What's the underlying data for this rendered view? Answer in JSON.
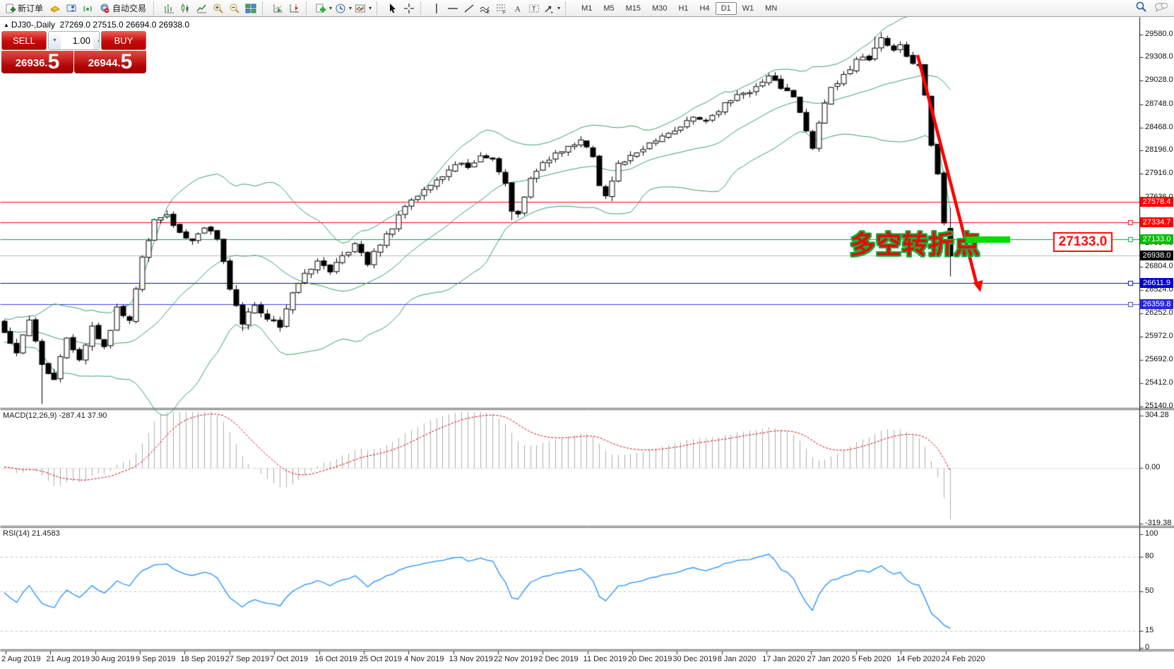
{
  "toolbar": {
    "new_order_label": "新订单",
    "autotrading_label": "自动交易",
    "caret": "▾",
    "timeframes": [
      "M1",
      "M5",
      "M15",
      "M30",
      "H1",
      "H4",
      "D1",
      "W1",
      "MN"
    ],
    "active_timeframe": "D1"
  },
  "chart": {
    "marker": "▲",
    "symbol": "DJ30-,Daily",
    "ohlc_text": "27269.0 27515.0 26694.0 26938.0"
  },
  "trade_panel": {
    "sell_label": "SELL",
    "buy_label": "BUY",
    "volume": "1.00",
    "spin_down": "▼",
    "spin_up": "▲",
    "sell_price_small": "26936.",
    "sell_price_big": "5",
    "buy_price_small": "26944.",
    "buy_price_big": "5"
  },
  "annotations": {
    "turning_point_text": "多空转折点",
    "callout_price": "27133.0"
  },
  "main_axis": {
    "ticks": [
      "29580.0",
      "29308.0",
      "29028.0",
      "28748.0",
      "28468.0",
      "28196.0",
      "27916.0",
      "27636.0",
      "27084.0",
      "26804.0",
      "26524.0",
      "26252.0",
      "25972.0",
      "25692.0",
      "25412.0",
      "25140.0"
    ]
  },
  "macd": {
    "label": "MACD(12,26,9) -287.41 37.90",
    "axis": [
      {
        "v": 304.28,
        "text": "304.28"
      },
      {
        "v": 0,
        "text": "0.00"
      },
      {
        "v": -319.38,
        "text": "-319.38"
      }
    ]
  },
  "rsi": {
    "label": "RSI(14) 21.4583",
    "axis": [
      {
        "v": 100,
        "text": "100"
      },
      {
        "v": 80,
        "text": "80"
      },
      {
        "v": 50,
        "text": "50"
      },
      {
        "v": 15,
        "text": "15"
      },
      {
        "v": 0,
        "text": "0"
      }
    ],
    "levels": [
      80,
      50,
      15
    ]
  },
  "dates": [
    "2 Aug 2019",
    "21 Aug 2019",
    "30 Aug 2019",
    "9 Sep 2019",
    "18 Sep 2019",
    "27 Sep 2019",
    "7 Oct 2019",
    "16 Oct 2019",
    "25 Oct 2019",
    "4 Nov 2019",
    "13 Nov 2019",
    "22 Nov 2019",
    "2 Dec 2019",
    "11 Dec 2019",
    "20 Dec 2019",
    "30 Dec 2019",
    "8 Jan 2020",
    "17 Jan 2020",
    "27 Jan 2020",
    "5 Feb 2020",
    "14 Feb 2020",
    "24 Feb 2020"
  ],
  "chart_data": {
    "type": "candlestick",
    "symbol": "DJ30-",
    "timeframe": "Daily",
    "bars_total": 152,
    "ylim": [
      25119,
      29791
    ],
    "last_ohlc": {
      "open": 27269.0,
      "high": 27515.0,
      "low": 26694.0,
      "close": 26938.0
    },
    "price_path": [
      [
        0,
        26040
      ],
      [
        2,
        25760
      ],
      [
        4,
        26180
      ],
      [
        6,
        25620
      ],
      [
        8,
        25480
      ],
      [
        10,
        25980
      ],
      [
        12,
        25680
      ],
      [
        14,
        26120
      ],
      [
        16,
        25830
      ],
      [
        18,
        26310
      ],
      [
        20,
        26180
      ],
      [
        22,
        26900
      ],
      [
        24,
        27380
      ],
      [
        26,
        27430
      ],
      [
        28,
        27210
      ],
      [
        30,
        27110
      ],
      [
        32,
        27290
      ],
      [
        34,
        27130
      ],
      [
        36,
        26560
      ],
      [
        38,
        26150
      ],
      [
        40,
        26360
      ],
      [
        42,
        26180
      ],
      [
        44,
        26100
      ],
      [
        46,
        26500
      ],
      [
        48,
        26720
      ],
      [
        50,
        26880
      ],
      [
        52,
        26740
      ],
      [
        54,
        26940
      ],
      [
        56,
        27080
      ],
      [
        58,
        26860
      ],
      [
        60,
        27090
      ],
      [
        62,
        27280
      ],
      [
        64,
        27540
      ],
      [
        66,
        27640
      ],
      [
        68,
        27770
      ],
      [
        70,
        27880
      ],
      [
        72,
        28040
      ],
      [
        74,
        28010
      ],
      [
        76,
        28120
      ],
      [
        78,
        28090
      ],
      [
        80,
        27820
      ],
      [
        81,
        27480
      ],
      [
        82,
        27430
      ],
      [
        84,
        27850
      ],
      [
        86,
        28050
      ],
      [
        88,
        28170
      ],
      [
        90,
        28230
      ],
      [
        92,
        28340
      ],
      [
        94,
        28130
      ],
      [
        95,
        27780
      ],
      [
        96,
        27660
      ],
      [
        98,
        28020
      ],
      [
        100,
        28150
      ],
      [
        102,
        28230
      ],
      [
        104,
        28310
      ],
      [
        106,
        28390
      ],
      [
        108,
        28480
      ],
      [
        110,
        28610
      ],
      [
        112,
        28560
      ],
      [
        114,
        28680
      ],
      [
        116,
        28820
      ],
      [
        118,
        28890
      ],
      [
        120,
        28940
      ],
      [
        122,
        29080
      ],
      [
        124,
        28960
      ],
      [
        126,
        28860
      ],
      [
        128,
        28420
      ],
      [
        129,
        28250
      ],
      [
        130,
        28540
      ],
      [
        131,
        28760
      ],
      [
        132,
        28940
      ],
      [
        134,
        29100
      ],
      [
        136,
        29280
      ],
      [
        138,
        29300
      ],
      [
        139,
        29420
      ],
      [
        140,
        29540
      ],
      [
        141,
        29480
      ],
      [
        142,
        29390
      ],
      [
        143,
        29440
      ],
      [
        144,
        29310
      ],
      [
        145,
        29230
      ],
      [
        146,
        29190
      ],
      [
        147,
        28870
      ],
      [
        148,
        28280
      ],
      [
        149,
        27940
      ],
      [
        150,
        27350
      ],
      [
        151,
        26938
      ]
    ],
    "overrides": {
      "6": {
        "low": 25170
      },
      "38": {
        "low": 26040
      },
      "81": {
        "low": 27365
      },
      "139": {
        "high": 29560
      },
      "140": {
        "high": 29610
      }
    },
    "indicators": [
      {
        "name": "Bollinger Bands",
        "period": 20,
        "deviation": 2,
        "color": "#37a06b"
      },
      {
        "name": "MACD",
        "params": [
          12,
          26,
          9
        ],
        "main": -287.41,
        "signal": 37.9,
        "hist_color": "#adadad",
        "signal_color": "#dd0000"
      },
      {
        "name": "RSI",
        "period": 14,
        "value": 21.4583,
        "color": "#1e8fff"
      }
    ],
    "hlines": [
      {
        "price": 27578.4,
        "line_color": "#ff0000",
        "badge_color": "#ff0000",
        "handle": false
      },
      {
        "price": 27334.7,
        "line_color": "#ff0000",
        "badge_color": "#ff0000",
        "handle": true
      },
      {
        "price": 27133.0,
        "line_color": "#00a651",
        "badge_color": "#00be00",
        "handle": true
      },
      {
        "price": 26938.0,
        "line_color": "#b8b8b8",
        "badge_color": "#000000",
        "handle": false
      },
      {
        "price": 26611.9,
        "line_color": "#0000c8",
        "badge_color": "#0000d2",
        "handle": true
      },
      {
        "price": 26359.8,
        "line_color": "#4040d8",
        "badge_color": "#2828d8",
        "handle": true
      }
    ]
  }
}
